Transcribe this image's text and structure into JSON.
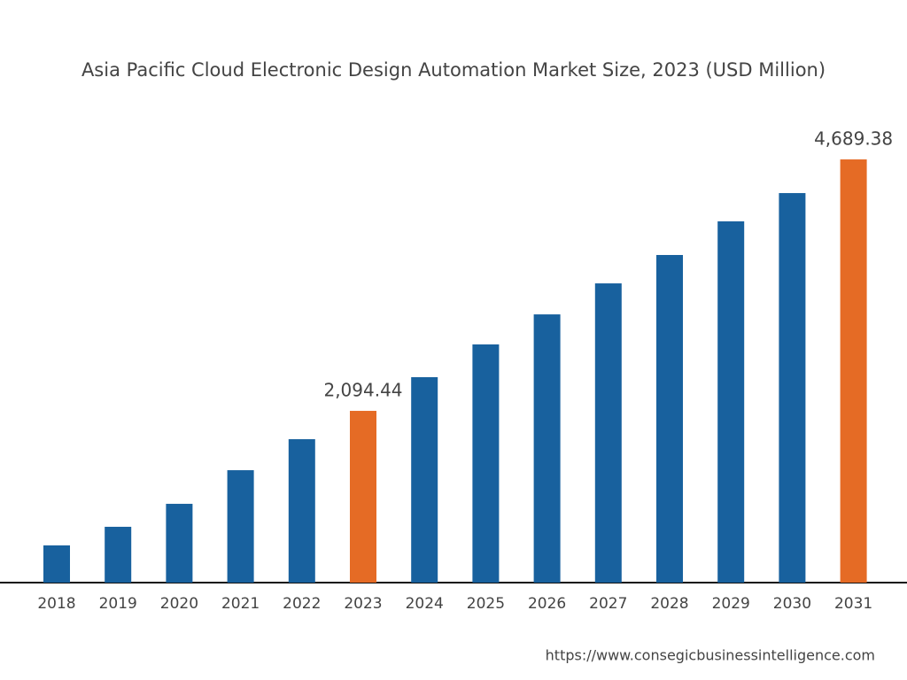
{
  "chart_data": {
    "type": "bar",
    "title": "Asia Pacific Cloud Electronic Design Automation Market Size, 2023 (USD Million)",
    "categories": [
      "2018",
      "2019",
      "2020",
      "2021",
      "2022",
      "2023",
      "2024",
      "2025",
      "2026",
      "2027",
      "2028",
      "2029",
      "2030",
      "2031"
    ],
    "values": [
      706,
      898,
      1135,
      1482,
      1802,
      2094.44,
      2442,
      2780,
      3090,
      3410,
      3703,
      4050,
      4342,
      4689.38
    ],
    "value_labels": [
      null,
      null,
      null,
      null,
      null,
      "2,094.44",
      null,
      null,
      null,
      null,
      null,
      null,
      null,
      "4,689.38"
    ],
    "colors": [
      "#18619e",
      "#18619e",
      "#18619e",
      "#18619e",
      "#18619e",
      "#e56b25",
      "#18619e",
      "#18619e",
      "#18619e",
      "#18619e",
      "#18619e",
      "#18619e",
      "#18619e",
      "#e56b25"
    ],
    "ylim": [
      322,
      5238
    ],
    "source": "https://www.consegicbusinessintelligence.com"
  }
}
